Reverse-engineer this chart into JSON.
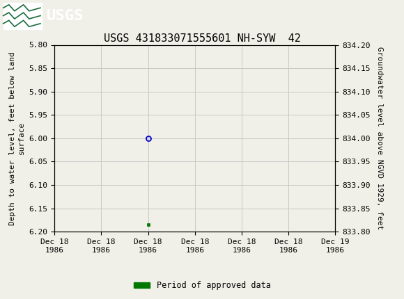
{
  "title": "USGS 431833071555601 NH-SYW  42",
  "ylabel_left": "Depth to water level, feet below land\nsurface",
  "ylabel_right": "Groundwater level above NGVD 1929, feet",
  "ylim_left": [
    5.8,
    6.2
  ],
  "ylim_right": [
    833.8,
    834.2
  ],
  "yticks_left": [
    5.8,
    5.85,
    5.9,
    5.95,
    6.0,
    6.05,
    6.1,
    6.15,
    6.2
  ],
  "yticks_right": [
    833.8,
    833.85,
    833.9,
    833.95,
    834.0,
    834.05,
    834.1,
    834.15,
    834.2
  ],
  "data_point_x_hours": 8,
  "data_point_y": 6.0,
  "bar_x_hours": 8,
  "bar_y": 6.185,
  "bar_color": "#007700",
  "point_color": "#0000CC",
  "background_color": "#f0f0e8",
  "grid_color": "#c8c8c8",
  "header_bg": "#1a6b3c",
  "title_fontsize": 11,
  "tick_fontsize": 8,
  "axis_label_fontsize": 8,
  "legend_label": "Period of approved data",
  "xlim_hours": [
    0,
    24
  ],
  "xtick_hours": [
    0,
    4,
    8,
    12,
    16,
    20,
    24
  ],
  "xtick_labels": [
    "Dec 18\n1986",
    "Dec 18\n1986",
    "Dec 18\n1986",
    "Dec 18\n1986",
    "Dec 18\n1986",
    "Dec 18\n1986",
    "Dec 19\n1986"
  ]
}
